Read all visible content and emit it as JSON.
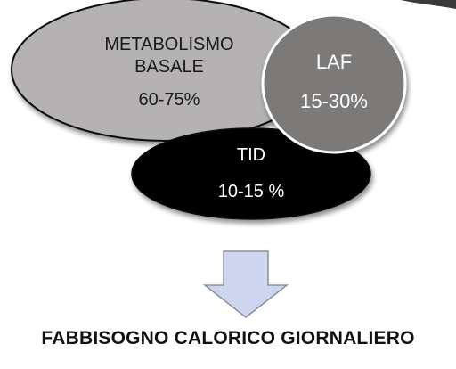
{
  "shapes": {
    "metabolism": {
      "line1": "METABOLISMO",
      "line2": "BASALE",
      "value": "60-75%",
      "fill": "#b4b2b2",
      "text_color": "#1a1a1a"
    },
    "laf": {
      "label": "LAF",
      "value": "15-30%",
      "fill": "#7b7979",
      "text_color": "#ffffff"
    },
    "tid": {
      "label": "TID",
      "value": "10-15 %",
      "fill": "#000000",
      "text_color": "#ffffff"
    }
  },
  "arrow": {
    "fill": "#cdd6ee",
    "stroke": "#8a8f9c"
  },
  "caption": "FABBISOGNO CALORICO GIORNALIERO"
}
